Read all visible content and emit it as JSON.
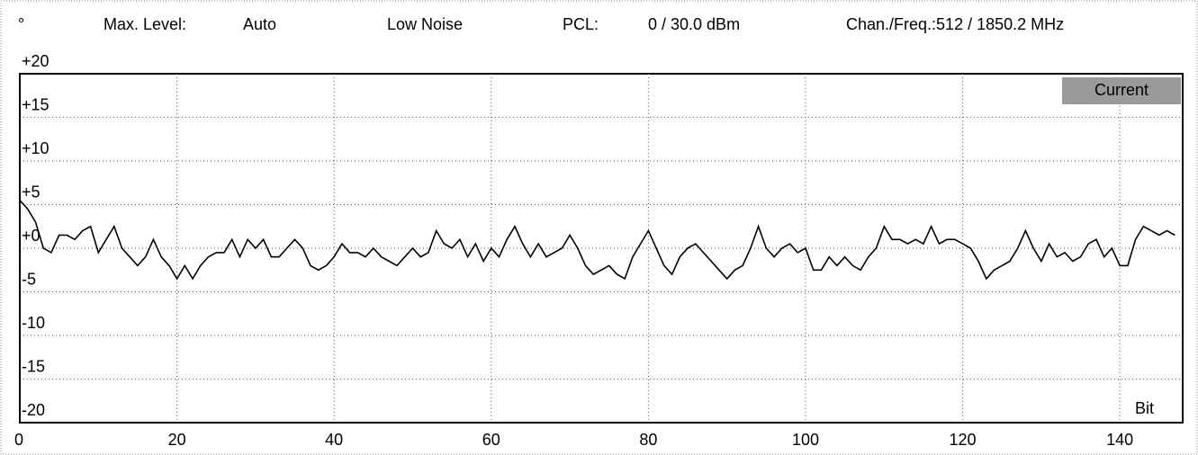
{
  "chart_data": {
    "type": "line",
    "header_items": [
      "°",
      "Max. Level:",
      "Auto",
      "Low Noise",
      "PCL:",
      "0 / 30.0 dBm",
      "Chan./Freq.:512 / 1850.2 MHz"
    ],
    "x_label": "Bit",
    "xlim": [
      0,
      148
    ],
    "xticks": [
      0,
      20,
      40,
      60,
      80,
      100,
      120,
      140
    ],
    "ylim": [
      -20,
      20
    ],
    "yticks": [
      {
        "value": 20,
        "label": "+20"
      },
      {
        "value": 15,
        "label": "+15"
      },
      {
        "value": 10,
        "label": "+10"
      },
      {
        "value": 5,
        "label": "+5"
      },
      {
        "value": 0,
        "label": "+0"
      },
      -5,
      -10,
      -15,
      -20
    ],
    "grid": true,
    "legend": "upper right",
    "x": [
      0,
      1,
      2,
      3,
      4,
      5,
      6,
      7,
      8,
      9,
      10,
      11,
      12,
      13,
      14,
      15,
      16,
      17,
      18,
      19,
      20,
      21,
      22,
      23,
      24,
      25,
      26,
      27,
      28,
      29,
      30,
      31,
      32,
      33,
      34,
      35,
      36,
      37,
      38,
      39,
      40,
      41,
      42,
      43,
      44,
      45,
      46,
      47,
      48,
      49,
      50,
      51,
      52,
      53,
      54,
      55,
      56,
      57,
      58,
      59,
      60,
      61,
      62,
      63,
      64,
      65,
      66,
      67,
      68,
      69,
      70,
      71,
      72,
      73,
      74,
      75,
      76,
      77,
      78,
      79,
      80,
      81,
      82,
      83,
      84,
      85,
      86,
      87,
      88,
      89,
      90,
      91,
      92,
      93,
      94,
      95,
      96,
      97,
      98,
      99,
      100,
      101,
      102,
      103,
      104,
      105,
      106,
      107,
      108,
      109,
      110,
      111,
      112,
      113,
      114,
      115,
      116,
      117,
      118,
      119,
      120,
      121,
      122,
      123,
      124,
      125,
      126,
      127,
      128,
      129,
      130,
      131,
      132,
      133,
      134,
      135,
      136,
      137,
      138,
      139,
      140,
      141,
      142,
      143,
      144,
      145,
      146,
      147
    ],
    "series": [
      {
        "name": "Current",
        "color": "#000000",
        "values": [
          5.5,
          4.5,
          3,
          0,
          -0.5,
          1.5,
          1.5,
          1,
          2,
          2.5,
          -0.5,
          1,
          2.5,
          0,
          -1,
          -2,
          -1,
          1,
          -1,
          -2,
          -3.5,
          -2,
          -3.5,
          -2,
          -1,
          -0.5,
          -0.5,
          1,
          -1,
          1,
          0,
          1,
          -1,
          -1,
          0,
          1,
          0,
          -2,
          -2.5,
          -2,
          -1,
          0.5,
          -0.5,
          -0.5,
          -1,
          0,
          -1,
          -1.5,
          -2,
          -1,
          0,
          -1,
          -0.5,
          2,
          0.5,
          0,
          1,
          -1,
          0.5,
          -1.5,
          0,
          -1,
          1,
          2.5,
          0.5,
          -1,
          0.5,
          -1,
          -0.5,
          0,
          1.5,
          0,
          -2,
          -3,
          -2.5,
          -2,
          -3,
          -3.5,
          -1,
          0.5,
          2,
          0,
          -2,
          -3,
          -1,
          0,
          0.5,
          -0.5,
          -1.5,
          -2.5,
          -3.5,
          -2.5,
          -2,
          0,
          2.5,
          0,
          -1,
          0,
          0.5,
          -0.5,
          0,
          -2.5,
          -2.5,
          -1,
          -2,
          -1,
          -2,
          -2.5,
          -1,
          0,
          2.5,
          1,
          1,
          0.5,
          1,
          0.5,
          2.5,
          0.5,
          1,
          1,
          0.5,
          0,
          -1.5,
          -3.5,
          -2.5,
          -2,
          -1.5,
          0,
          2,
          0,
          -1.5,
          0.5,
          -1,
          -0.5,
          -1.5,
          -1,
          0.5,
          1,
          -1,
          0,
          -2,
          -2,
          1,
          2.5,
          2,
          1.5,
          2,
          1.5
        ]
      }
    ]
  }
}
